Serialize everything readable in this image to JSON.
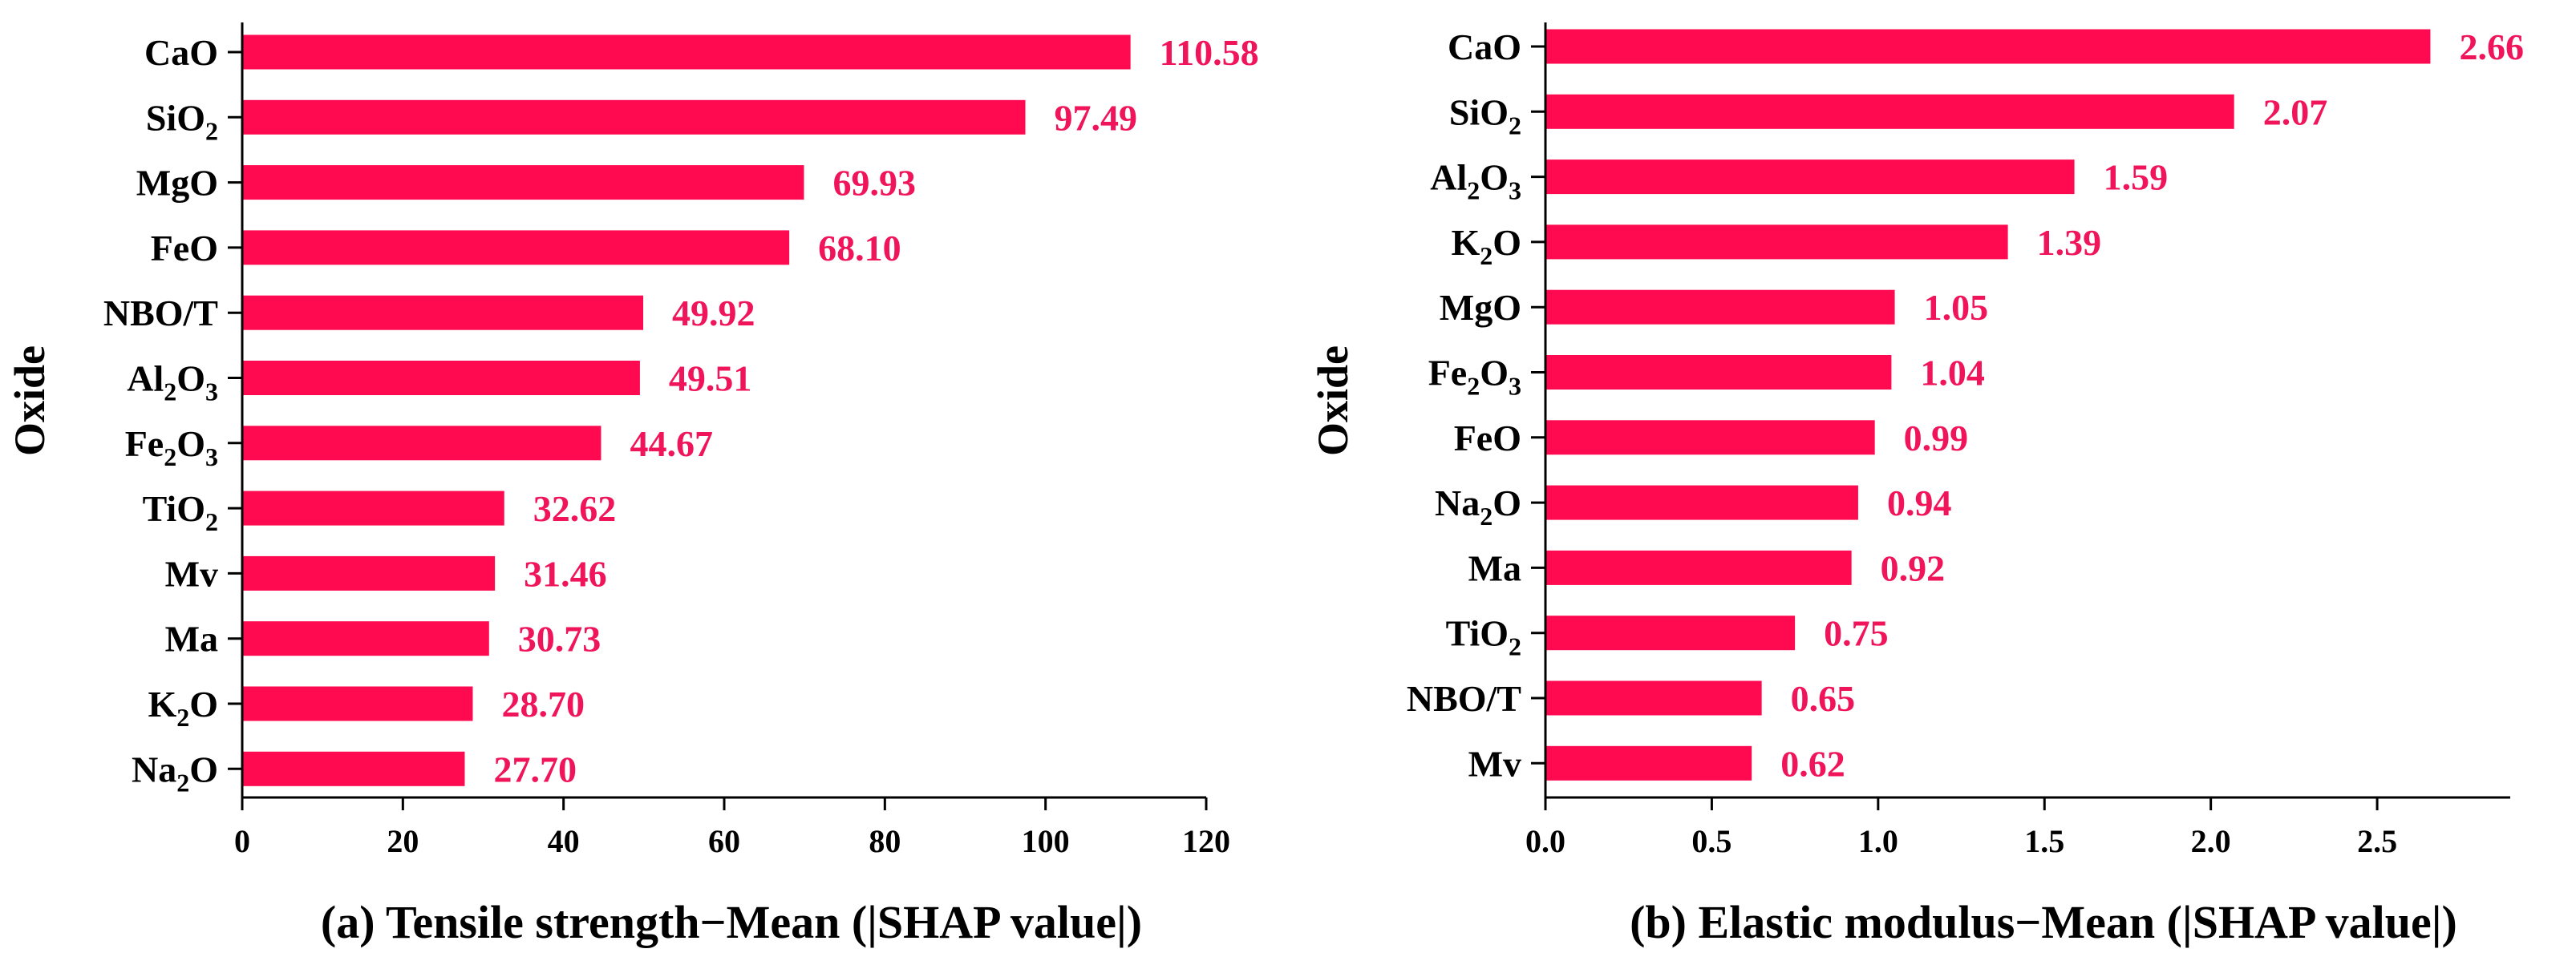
{
  "colors": {
    "bar": "#FF0A50",
    "value_text": "#F0145A",
    "axis": "#000000"
  },
  "chart_data": [
    {
      "type": "bar",
      "orientation": "horizontal",
      "title": "(a) Tensile strength−Mean (|SHAP value|)",
      "ylabel": "Oxide",
      "xlabel": "",
      "xlim": [
        0,
        120
      ],
      "xticks": [
        0,
        20,
        40,
        60,
        80,
        100,
        120
      ],
      "xtick_labels": [
        "0",
        "20",
        "40",
        "60",
        "80",
        "100",
        "120"
      ],
      "categories": [
        {
          "base": "CaO",
          "sub": "",
          "tail": ""
        },
        {
          "base": "SiO",
          "sub": "2",
          "tail": ""
        },
        {
          "base": "MgO",
          "sub": "",
          "tail": ""
        },
        {
          "base": "FeO",
          "sub": "",
          "tail": ""
        },
        {
          "base": "NBO/T",
          "sub": "",
          "tail": ""
        },
        {
          "base": "Al",
          "sub": "2",
          "tail": "O",
          "sub2": "3"
        },
        {
          "base": "Fe",
          "sub": "2",
          "tail": "O",
          "sub2": "3"
        },
        {
          "base": "TiO",
          "sub": "2",
          "tail": ""
        },
        {
          "base": "Mv",
          "sub": "",
          "tail": ""
        },
        {
          "base": "Ma",
          "sub": "",
          "tail": ""
        },
        {
          "base": "K",
          "sub": "2",
          "tail": "O"
        },
        {
          "base": "Na",
          "sub": "2",
          "tail": "O"
        }
      ],
      "values": [
        110.58,
        97.49,
        69.93,
        68.1,
        49.92,
        49.51,
        44.67,
        32.62,
        31.46,
        30.73,
        28.7,
        27.7
      ],
      "value_labels": [
        "110.58",
        "97.49",
        "69.93",
        "68.10",
        "49.92",
        "49.51",
        "44.67",
        "32.62",
        "31.46",
        "30.73",
        "28.70",
        "27.70"
      ]
    },
    {
      "type": "bar",
      "orientation": "horizontal",
      "title": "(b) Elastic modulus−Mean (|SHAP value|)",
      "ylabel": "Oxide",
      "xlabel": "",
      "xlim": [
        0,
        2.9
      ],
      "xticks": [
        0,
        0.5,
        1.0,
        1.5,
        2.0,
        2.5
      ],
      "xtick_labels": [
        "0.0",
        "0.5",
        "1.0",
        "1.5",
        "2.0",
        "2.5"
      ],
      "categories": [
        {
          "base": "CaO",
          "sub": "",
          "tail": ""
        },
        {
          "base": "SiO",
          "sub": "2",
          "tail": ""
        },
        {
          "base": "Al",
          "sub": "2",
          "tail": "O",
          "sub2": "3"
        },
        {
          "base": "K",
          "sub": "2",
          "tail": "O"
        },
        {
          "base": "MgO",
          "sub": "",
          "tail": ""
        },
        {
          "base": "Fe",
          "sub": "2",
          "tail": "O",
          "sub2": "3"
        },
        {
          "base": "FeO",
          "sub": "",
          "tail": ""
        },
        {
          "base": "Na",
          "sub": "2",
          "tail": "O"
        },
        {
          "base": "Ma",
          "sub": "",
          "tail": ""
        },
        {
          "base": "TiO",
          "sub": "2",
          "tail": ""
        },
        {
          "base": "NBO/T",
          "sub": "",
          "tail": ""
        },
        {
          "base": "Mv",
          "sub": "",
          "tail": ""
        }
      ],
      "values": [
        2.66,
        2.07,
        1.59,
        1.39,
        1.05,
        1.04,
        0.99,
        0.94,
        0.92,
        0.75,
        0.65,
        0.62
      ],
      "value_labels": [
        "2.66",
        "2.07",
        "1.59",
        "1.39",
        "1.05",
        "1.04",
        "0.99",
        "0.94",
        "0.92",
        "0.75",
        "0.65",
        "0.62"
      ]
    }
  ]
}
